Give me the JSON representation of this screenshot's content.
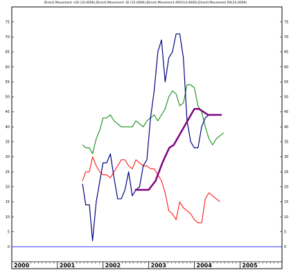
{
  "chart_data": {
    "type": "line",
    "title": "Directi Movement +DI (14.0000),Directi Movement -DI (15.0000),Directi Movement ADX(14.0000),Directi Movement DX(14.0000)",
    "ylim": [
      -5,
      80
    ],
    "y_ticks": [
      0,
      5,
      10,
      15,
      20,
      25,
      30,
      35,
      40,
      45,
      50,
      55,
      60,
      65,
      70,
      75
    ],
    "y_tick_labels": [
      "0",
      "5",
      "10",
      "15",
      "20",
      "25",
      "30",
      "35",
      "40",
      "45",
      "50",
      "55",
      "60",
      "65",
      "70",
      "75"
    ],
    "x_range": [
      2000.0,
      2005.92
    ],
    "year_labels": [
      {
        "label": "2000",
        "x": 2000.0
      },
      {
        "label": "2001",
        "x": 2001.0
      },
      {
        "label": "2002",
        "x": 2002.0
      },
      {
        "label": "2003",
        "x": 2003.0
      },
      {
        "label": "2004",
        "x": 2004.0
      },
      {
        "label": "2005",
        "x": 2005.0
      }
    ],
    "zero_line": 0,
    "series": [
      {
        "color": "#008000",
        "width": 1,
        "points": [
          [
            2001.55,
            34
          ],
          [
            2001.62,
            33
          ],
          [
            2001.7,
            33
          ],
          [
            2001.77,
            31
          ],
          [
            2001.85,
            36
          ],
          [
            2001.93,
            39
          ],
          [
            2002.0,
            43
          ],
          [
            2002.08,
            43
          ],
          [
            2002.16,
            44
          ],
          [
            2002.24,
            42
          ],
          [
            2002.32,
            41
          ],
          [
            2002.4,
            40
          ],
          [
            2002.48,
            40
          ],
          [
            2002.56,
            40
          ],
          [
            2002.64,
            40
          ],
          [
            2002.72,
            42
          ],
          [
            2002.8,
            41
          ],
          [
            2002.88,
            40
          ],
          [
            2002.96,
            42
          ],
          [
            2003.04,
            43
          ],
          [
            2003.12,
            44
          ],
          [
            2003.2,
            42
          ],
          [
            2003.28,
            44
          ],
          [
            2003.36,
            46
          ],
          [
            2003.44,
            50
          ],
          [
            2003.52,
            52
          ],
          [
            2003.6,
            51
          ],
          [
            2003.68,
            47
          ],
          [
            2003.76,
            48
          ],
          [
            2003.84,
            54
          ],
          [
            2003.92,
            54
          ],
          [
            2004.0,
            53
          ],
          [
            2004.08,
            47
          ],
          [
            2004.16,
            45
          ],
          [
            2004.24,
            40
          ],
          [
            2004.32,
            36
          ],
          [
            2004.4,
            34
          ],
          [
            2004.48,
            36
          ],
          [
            2004.56,
            37
          ],
          [
            2004.64,
            38
          ]
        ]
      },
      {
        "color": "#ff0000",
        "width": 1,
        "points": [
          [
            2001.55,
            22
          ],
          [
            2001.62,
            25
          ],
          [
            2001.7,
            25
          ],
          [
            2001.77,
            30
          ],
          [
            2001.85,
            27
          ],
          [
            2001.93,
            25
          ],
          [
            2002.0,
            24
          ],
          [
            2002.08,
            24
          ],
          [
            2002.16,
            23
          ],
          [
            2002.24,
            25
          ],
          [
            2002.32,
            27
          ],
          [
            2002.4,
            29
          ],
          [
            2002.48,
            29
          ],
          [
            2002.56,
            27
          ],
          [
            2002.64,
            26
          ],
          [
            2002.72,
            29
          ],
          [
            2002.8,
            28
          ],
          [
            2002.88,
            27
          ],
          [
            2002.96,
            27
          ],
          [
            2003.04,
            26
          ],
          [
            2003.12,
            26
          ],
          [
            2003.2,
            24
          ],
          [
            2003.28,
            22
          ],
          [
            2003.36,
            18
          ],
          [
            2003.44,
            12
          ],
          [
            2003.52,
            11
          ],
          [
            2003.6,
            9
          ],
          [
            2003.68,
            15
          ],
          [
            2003.76,
            13
          ],
          [
            2003.84,
            12
          ],
          [
            2003.92,
            11
          ],
          [
            2004.0,
            9
          ],
          [
            2004.08,
            8
          ],
          [
            2004.16,
            8
          ],
          [
            2004.24,
            16
          ],
          [
            2004.32,
            18
          ],
          [
            2004.4,
            17
          ],
          [
            2004.48,
            16
          ],
          [
            2004.56,
            15
          ]
        ]
      },
      {
        "color": "#000080",
        "width": 1.2,
        "points": [
          [
            2001.55,
            21
          ],
          [
            2001.62,
            14
          ],
          [
            2001.7,
            14
          ],
          [
            2001.77,
            2
          ],
          [
            2001.85,
            15
          ],
          [
            2001.93,
            22
          ],
          [
            2002.0,
            28
          ],
          [
            2002.08,
            28
          ],
          [
            2002.16,
            31
          ],
          [
            2002.24,
            23
          ],
          [
            2002.32,
            16
          ],
          [
            2002.4,
            16
          ],
          [
            2002.48,
            19
          ],
          [
            2002.56,
            25
          ],
          [
            2002.64,
            17
          ],
          [
            2002.72,
            19
          ],
          [
            2002.8,
            20
          ],
          [
            2002.88,
            27
          ],
          [
            2002.96,
            29
          ],
          [
            2003.04,
            43
          ],
          [
            2003.12,
            52
          ],
          [
            2003.2,
            65
          ],
          [
            2003.28,
            69
          ],
          [
            2003.36,
            55
          ],
          [
            2003.44,
            63
          ],
          [
            2003.52,
            65
          ],
          [
            2003.6,
            71
          ],
          [
            2003.68,
            71
          ],
          [
            2003.76,
            63
          ],
          [
            2003.84,
            42
          ],
          [
            2003.92,
            35
          ],
          [
            2004.0,
            33
          ],
          [
            2004.08,
            33
          ],
          [
            2004.16,
            40
          ],
          [
            2004.24,
            43
          ],
          [
            2004.32,
            44
          ]
        ]
      },
      {
        "color": "#800080",
        "width": 2.5,
        "points": [
          [
            2002.7,
            19
          ],
          [
            2002.85,
            19
          ],
          [
            2003.0,
            19
          ],
          [
            2003.15,
            22
          ],
          [
            2003.3,
            28
          ],
          [
            2003.45,
            33
          ],
          [
            2003.55,
            34
          ],
          [
            2003.7,
            38
          ],
          [
            2003.85,
            42
          ],
          [
            2004.0,
            46
          ],
          [
            2004.1,
            46
          ],
          [
            2004.2,
            45
          ],
          [
            2004.3,
            44
          ],
          [
            2004.45,
            44
          ],
          [
            2004.6,
            44
          ]
        ]
      }
    ]
  }
}
